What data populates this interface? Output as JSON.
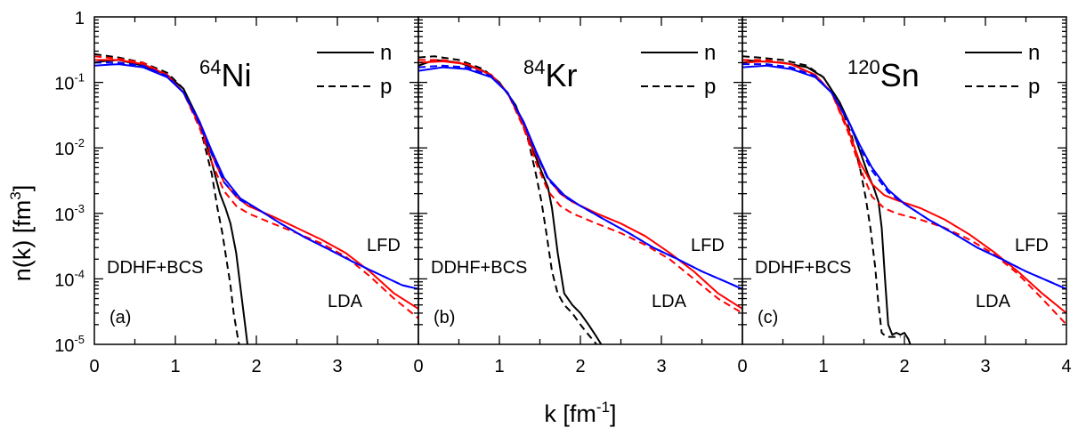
{
  "figure": {
    "xlabel_main": "k [fm",
    "xlabel_sup": "-1",
    "xlabel_end": "]",
    "ylabel_main": "n(k) [fm",
    "ylabel_sup": "3",
    "ylabel_end": "]",
    "ytick_base": "10",
    "colors": {
      "ddhf": "#000000",
      "lfd": "#ff0000",
      "lda": "#0000ff"
    }
  },
  "chart_data": [
    {
      "type": "line",
      "panel_label": "(a)",
      "nucleus_mass": "64",
      "nucleus_symbol": "Ni",
      "legend": {
        "n": "n",
        "p": "p"
      },
      "annotations": {
        "ddhf": "DDHF+BCS",
        "lfd": "LFD",
        "lda": "LDA"
      },
      "xlim": [
        0,
        4
      ],
      "ylim": [
        1e-05,
        1
      ],
      "yscale": "log",
      "xticks": [
        0,
        1,
        2,
        3
      ],
      "xtick_labels": [
        "0",
        "1",
        "2",
        "3"
      ],
      "ytick_labels": [
        "1",
        "-1",
        "-2",
        "-3",
        "-4",
        "-5"
      ],
      "series": [
        {
          "key": "ddhf_n",
          "style": "solid",
          "color": "#000000",
          "x": [
            0,
            0.1,
            0.3,
            0.6,
            0.9,
            1.1,
            1.3,
            1.45,
            1.55,
            1.62,
            1.68,
            1.75,
            1.8,
            1.86,
            1.9
          ],
          "y": [
            0.2,
            0.21,
            0.22,
            0.18,
            0.13,
            0.08,
            0.025,
            0.006,
            0.002,
            0.0012,
            0.0007,
            0.00025,
            8e-05,
            2e-05,
            8e-06
          ]
        },
        {
          "key": "ddhf_p",
          "style": "dashed",
          "color": "#000000",
          "x": [
            0,
            0.1,
            0.3,
            0.6,
            0.9,
            1.1,
            1.3,
            1.45,
            1.52,
            1.58,
            1.63,
            1.68,
            1.72,
            1.76,
            1.8
          ],
          "y": [
            0.27,
            0.26,
            0.24,
            0.2,
            0.14,
            0.08,
            0.022,
            0.004,
            0.0012,
            0.0005,
            0.0002,
            8e-05,
            3e-05,
            1.5e-05,
            8e-06
          ]
        },
        {
          "key": "lfd_n",
          "style": "solid",
          "color": "#ff0000",
          "x": [
            0,
            0.3,
            0.6,
            0.9,
            1.1,
            1.3,
            1.45,
            1.6,
            1.75,
            1.9,
            2.2,
            2.5,
            2.8,
            3.1,
            3.4,
            3.7,
            4.0
          ],
          "y": [
            0.22,
            0.22,
            0.19,
            0.13,
            0.07,
            0.022,
            0.008,
            0.003,
            0.0018,
            0.0013,
            0.0009,
            0.0006,
            0.0004,
            0.00025,
            0.00013,
            6e-05,
            3.5e-05
          ]
        },
        {
          "key": "lfd_p",
          "style": "dashed",
          "color": "#ff0000",
          "x": [
            0,
            0.3,
            0.6,
            0.9,
            1.1,
            1.3,
            1.45,
            1.6,
            1.75,
            1.9,
            2.2,
            2.5,
            2.8,
            3.1,
            3.4,
            3.7,
            4.0
          ],
          "y": [
            0.25,
            0.23,
            0.2,
            0.13,
            0.07,
            0.02,
            0.006,
            0.0022,
            0.0013,
            0.001,
            0.0007,
            0.0005,
            0.00035,
            0.00022,
            0.00011,
            5e-05,
            2.5e-05
          ]
        },
        {
          "key": "lda_n",
          "style": "solid",
          "color": "#0000ff",
          "x": [
            0,
            0.3,
            0.6,
            0.9,
            1.1,
            1.3,
            1.45,
            1.6,
            1.8,
            2.0,
            2.3,
            2.6,
            2.9,
            3.2,
            3.5,
            3.8,
            4.0
          ],
          "y": [
            0.18,
            0.19,
            0.17,
            0.12,
            0.07,
            0.025,
            0.009,
            0.0035,
            0.0017,
            0.0012,
            0.0007,
            0.00043,
            0.00028,
            0.00018,
            0.00012,
            8e-05,
            7e-05
          ]
        },
        {
          "key": "lda_p",
          "style": "dashed",
          "color": "#0000ff",
          "x": [
            0,
            0.3,
            0.6,
            0.9,
            1.1,
            1.3,
            1.45,
            1.6,
            1.8,
            2.0,
            2.3,
            2.6,
            2.9,
            3.2,
            3.5,
            3.8,
            4.0
          ],
          "y": [
            0.2,
            0.2,
            0.18,
            0.125,
            0.07,
            0.023,
            0.008,
            0.003,
            0.0016,
            0.0012,
            0.0007,
            0.00043,
            0.00028,
            0.00018,
            0.00012,
            8e-05,
            7e-05
          ]
        }
      ]
    },
    {
      "type": "line",
      "panel_label": "(b)",
      "nucleus_mass": "84",
      "nucleus_symbol": "Kr",
      "legend": {
        "n": "n",
        "p": "p"
      },
      "annotations": {
        "ddhf": "DDHF+BCS",
        "lfd": "LFD",
        "lda": "LDA"
      },
      "xlim": [
        0,
        4
      ],
      "ylim": [
        1e-05,
        1
      ],
      "yscale": "log",
      "xticks": [
        0,
        1,
        2,
        3
      ],
      "xtick_labels": [
        "0",
        "1",
        "2",
        "3"
      ],
      "series": [
        {
          "key": "ddhf_n",
          "style": "solid",
          "color": "#000000",
          "x": [
            0,
            0.2,
            0.5,
            0.8,
            1.0,
            1.2,
            1.35,
            1.5,
            1.6,
            1.65,
            1.72,
            1.8,
            1.9,
            2.0,
            2.1,
            2.2,
            2.28
          ],
          "y": [
            0.18,
            0.22,
            0.2,
            0.15,
            0.1,
            0.045,
            0.015,
            0.005,
            0.0025,
            0.0012,
            0.00025,
            6e-05,
            4e-05,
            3e-05,
            2e-05,
            1.3e-05,
            9e-06
          ]
        },
        {
          "key": "ddhf_p",
          "style": "dashed",
          "color": "#000000",
          "x": [
            0,
            0.2,
            0.5,
            0.8,
            1.0,
            1.2,
            1.35,
            1.45,
            1.52,
            1.58,
            1.65,
            1.72,
            1.8,
            1.9,
            2.0,
            2.1,
            2.2
          ],
          "y": [
            0.24,
            0.25,
            0.22,
            0.16,
            0.1,
            0.045,
            0.014,
            0.004,
            0.0015,
            0.0005,
            0.00013,
            6e-05,
            4e-05,
            3e-05,
            2e-05,
            1.4e-05,
            1e-05
          ]
        },
        {
          "key": "lfd_n",
          "style": "solid",
          "color": "#ff0000",
          "x": [
            0,
            0.3,
            0.6,
            0.9,
            1.1,
            1.3,
            1.45,
            1.6,
            1.75,
            1.9,
            2.2,
            2.5,
            2.8,
            3.1,
            3.4,
            3.7,
            4.0
          ],
          "y": [
            0.2,
            0.21,
            0.19,
            0.13,
            0.07,
            0.022,
            0.008,
            0.0035,
            0.002,
            0.0015,
            0.001,
            0.0007,
            0.00045,
            0.00025,
            0.00013,
            6e-05,
            3.5e-05
          ]
        },
        {
          "key": "lfd_p",
          "style": "dashed",
          "color": "#ff0000",
          "x": [
            0,
            0.3,
            0.6,
            0.9,
            1.1,
            1.3,
            1.45,
            1.6,
            1.75,
            1.9,
            2.2,
            2.5,
            2.8,
            3.1,
            3.4,
            3.7,
            4.0
          ],
          "y": [
            0.22,
            0.22,
            0.19,
            0.13,
            0.07,
            0.02,
            0.006,
            0.0022,
            0.0013,
            0.001,
            0.0007,
            0.0005,
            0.00033,
            0.0002,
            0.0001,
            5e-05,
            3e-05
          ]
        },
        {
          "key": "lda_n",
          "style": "solid",
          "color": "#0000ff",
          "x": [
            0,
            0.3,
            0.6,
            0.9,
            1.1,
            1.3,
            1.45,
            1.6,
            1.8,
            2.0,
            2.3,
            2.6,
            2.9,
            3.2,
            3.5,
            3.8,
            4.0
          ],
          "y": [
            0.15,
            0.17,
            0.16,
            0.12,
            0.07,
            0.025,
            0.009,
            0.0035,
            0.0019,
            0.0013,
            0.0008,
            0.0005,
            0.0003,
            0.0002,
            0.00013,
            9e-05,
            7e-05
          ]
        },
        {
          "key": "lda_p",
          "style": "dashed",
          "color": "#0000ff",
          "x": [
            0,
            0.3,
            0.6,
            0.9,
            1.1,
            1.3,
            1.45,
            1.6,
            1.8,
            2.0,
            2.3,
            2.6,
            2.9,
            3.2,
            3.5,
            3.8,
            4.0
          ],
          "y": [
            0.17,
            0.18,
            0.17,
            0.125,
            0.07,
            0.024,
            0.0085,
            0.0033,
            0.0018,
            0.0013,
            0.0008,
            0.0005,
            0.0003,
            0.0002,
            0.00013,
            9e-05,
            7e-05
          ]
        }
      ]
    },
    {
      "type": "line",
      "panel_label": "(c)",
      "nucleus_mass": "120",
      "nucleus_symbol": "Sn",
      "legend": {
        "n": "n",
        "p": "p"
      },
      "annotations": {
        "ddhf": "DDHF+BCS",
        "lfd": "LFD",
        "lda": "LDA"
      },
      "xlim": [
        0,
        4
      ],
      "ylim": [
        1e-05,
        1
      ],
      "yscale": "log",
      "xticks": [
        0,
        1,
        2,
        3,
        4
      ],
      "xtick_labels": [
        "0",
        "1",
        "2",
        "3",
        "4"
      ],
      "series": [
        {
          "key": "ddhf_n",
          "style": "solid",
          "color": "#000000",
          "x": [
            0,
            0.2,
            0.5,
            0.8,
            1.0,
            1.2,
            1.35,
            1.45,
            1.55,
            1.62,
            1.68,
            1.72,
            1.76,
            1.8,
            1.85,
            1.9,
            1.95,
            2.0,
            2.05,
            2.1
          ],
          "y": [
            0.22,
            0.21,
            0.2,
            0.17,
            0.12,
            0.05,
            0.02,
            0.009,
            0.004,
            0.0025,
            0.0015,
            0.0006,
            0.0001,
            2e-05,
            1.4e-05,
            1.5e-05,
            1.4e-05,
            1.5e-05,
            1.2e-05,
            8e-06
          ]
        },
        {
          "key": "ddhf_p",
          "style": "dashed",
          "color": "#000000",
          "x": [
            0,
            0.2,
            0.5,
            0.8,
            1.0,
            1.2,
            1.35,
            1.45,
            1.52,
            1.58,
            1.64,
            1.68,
            1.72,
            1.78,
            1.85,
            1.95
          ],
          "y": [
            0.25,
            0.24,
            0.22,
            0.18,
            0.12,
            0.05,
            0.015,
            0.005,
            0.0018,
            0.0006,
            0.00015,
            4e-05,
            1.5e-05,
            1.3e-05,
            1.3e-05,
            1.3e-05
          ]
        },
        {
          "key": "lfd_n",
          "style": "solid",
          "color": "#ff0000",
          "x": [
            0,
            0.3,
            0.6,
            0.9,
            1.1,
            1.3,
            1.45,
            1.6,
            1.75,
            1.9,
            2.2,
            2.5,
            2.8,
            3.1,
            3.4,
            3.7,
            4.0
          ],
          "y": [
            0.2,
            0.21,
            0.19,
            0.13,
            0.07,
            0.02,
            0.006,
            0.0028,
            0.0019,
            0.0016,
            0.0012,
            0.0008,
            0.00048,
            0.00026,
            0.00013,
            6e-05,
            3e-05
          ]
        },
        {
          "key": "lfd_p",
          "style": "dashed",
          "color": "#ff0000",
          "x": [
            0,
            0.3,
            0.6,
            0.9,
            1.1,
            1.3,
            1.45,
            1.6,
            1.75,
            1.9,
            2.2,
            2.5,
            2.8,
            3.1,
            3.4,
            3.7,
            4.0
          ],
          "y": [
            0.22,
            0.22,
            0.19,
            0.13,
            0.07,
            0.018,
            0.005,
            0.0018,
            0.0012,
            0.001,
            0.0008,
            0.0006,
            0.0004,
            0.00024,
            0.00012,
            5e-05,
            2e-05
          ]
        },
        {
          "key": "lda_n",
          "style": "solid",
          "color": "#0000ff",
          "x": [
            0,
            0.3,
            0.6,
            0.9,
            1.1,
            1.3,
            1.45,
            1.6,
            1.8,
            2.0,
            2.3,
            2.6,
            2.9,
            3.2,
            3.5,
            3.8,
            4.0
          ],
          "y": [
            0.17,
            0.18,
            0.16,
            0.12,
            0.07,
            0.027,
            0.011,
            0.005,
            0.0023,
            0.0014,
            0.0008,
            0.0005,
            0.0003,
            0.0002,
            0.00013,
            9e-05,
            7e-05
          ]
        },
        {
          "key": "lda_p",
          "style": "dashed",
          "color": "#0000ff",
          "x": [
            0,
            0.3,
            0.6,
            0.9,
            1.1,
            1.3,
            1.45,
            1.6,
            1.8,
            2.0,
            2.3,
            2.6,
            2.9,
            3.2,
            3.5,
            3.8,
            4.0
          ],
          "y": [
            0.19,
            0.19,
            0.17,
            0.125,
            0.07,
            0.026,
            0.01,
            0.0045,
            0.0021,
            0.0014,
            0.0008,
            0.0005,
            0.0003,
            0.0002,
            0.00013,
            9e-05,
            7e-05
          ]
        }
      ]
    }
  ]
}
